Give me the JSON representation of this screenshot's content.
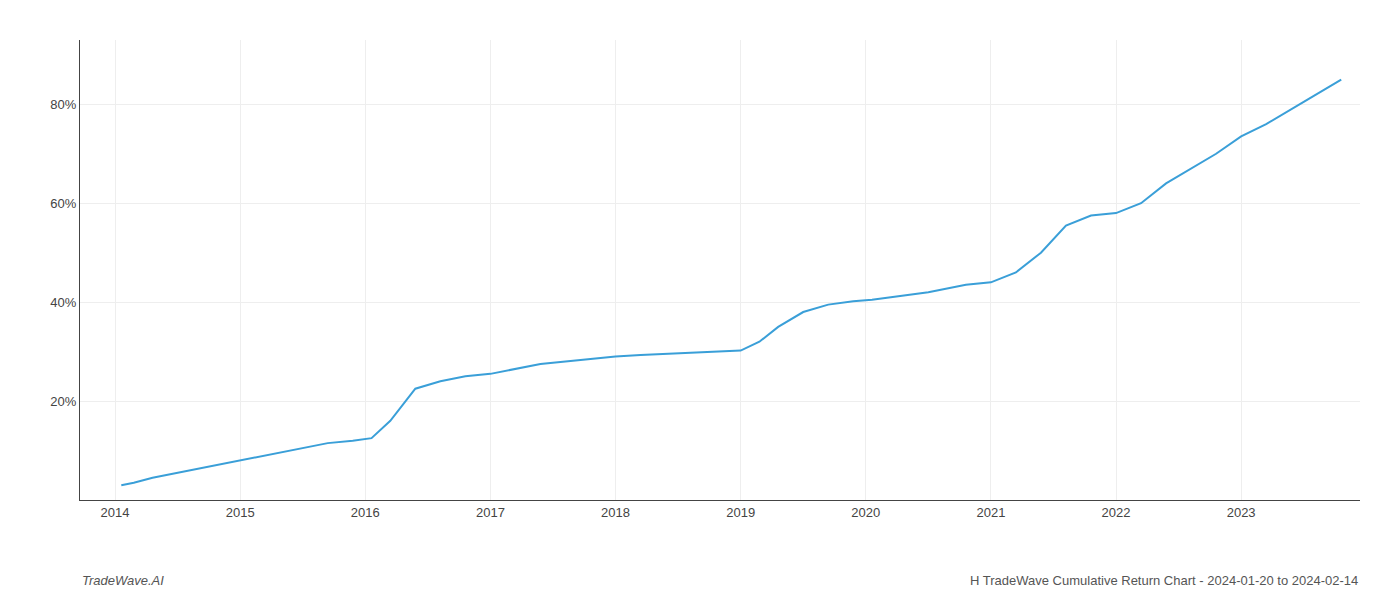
{
  "chart_data": {
    "type": "line",
    "annotations": [
      "TradeWave.AI",
      "H TradeWave Cumulative Return Chart - 2024-01-20 to 2024-02-14"
    ],
    "color": "#3a9fd8",
    "x": [
      2014.05,
      2014.15,
      2014.3,
      2014.5,
      2014.7,
      2014.9,
      2015.1,
      2015.3,
      2015.5,
      2015.7,
      2015.9,
      2016.05,
      2016.2,
      2016.4,
      2016.6,
      2016.8,
      2017.0,
      2017.2,
      2017.4,
      2017.6,
      2017.8,
      2018.0,
      2018.2,
      2018.4,
      2018.6,
      2018.8,
      2019.0,
      2019.15,
      2019.3,
      2019.5,
      2019.7,
      2019.9,
      2020.05,
      2020.2,
      2020.5,
      2020.8,
      2021.0,
      2021.2,
      2021.4,
      2021.6,
      2021.8,
      2022.0,
      2022.2,
      2022.4,
      2022.6,
      2022.8,
      2023.0,
      2023.2,
      2023.5,
      2023.8
    ],
    "values": [
      3.0,
      3.5,
      4.5,
      5.5,
      6.5,
      7.5,
      8.5,
      9.5,
      10.5,
      11.5,
      12.0,
      12.5,
      16.0,
      22.5,
      24.0,
      25.0,
      25.5,
      26.5,
      27.5,
      28.0,
      28.5,
      29.0,
      29.3,
      29.5,
      29.7,
      29.9,
      30.2,
      32.0,
      35.0,
      38.0,
      39.5,
      40.2,
      40.5,
      41.0,
      42.0,
      43.5,
      44.0,
      46.0,
      50.0,
      55.5,
      57.5,
      58.0,
      60.0,
      64.0,
      67.0,
      70.0,
      73.5,
      76.0,
      80.5,
      85.0
    ],
    "xlim": [
      2013.72,
      2023.95
    ],
    "ylim": [
      0,
      93
    ],
    "xticks": [
      2014,
      2015,
      2016,
      2017,
      2018,
      2019,
      2020,
      2021,
      2022,
      2023
    ],
    "yticks": [
      {
        "value": 20,
        "label": "20%"
      },
      {
        "value": 40,
        "label": "40%"
      },
      {
        "value": 60,
        "label": "60%"
      },
      {
        "value": 80,
        "label": "80%"
      }
    ],
    "grid": true
  }
}
